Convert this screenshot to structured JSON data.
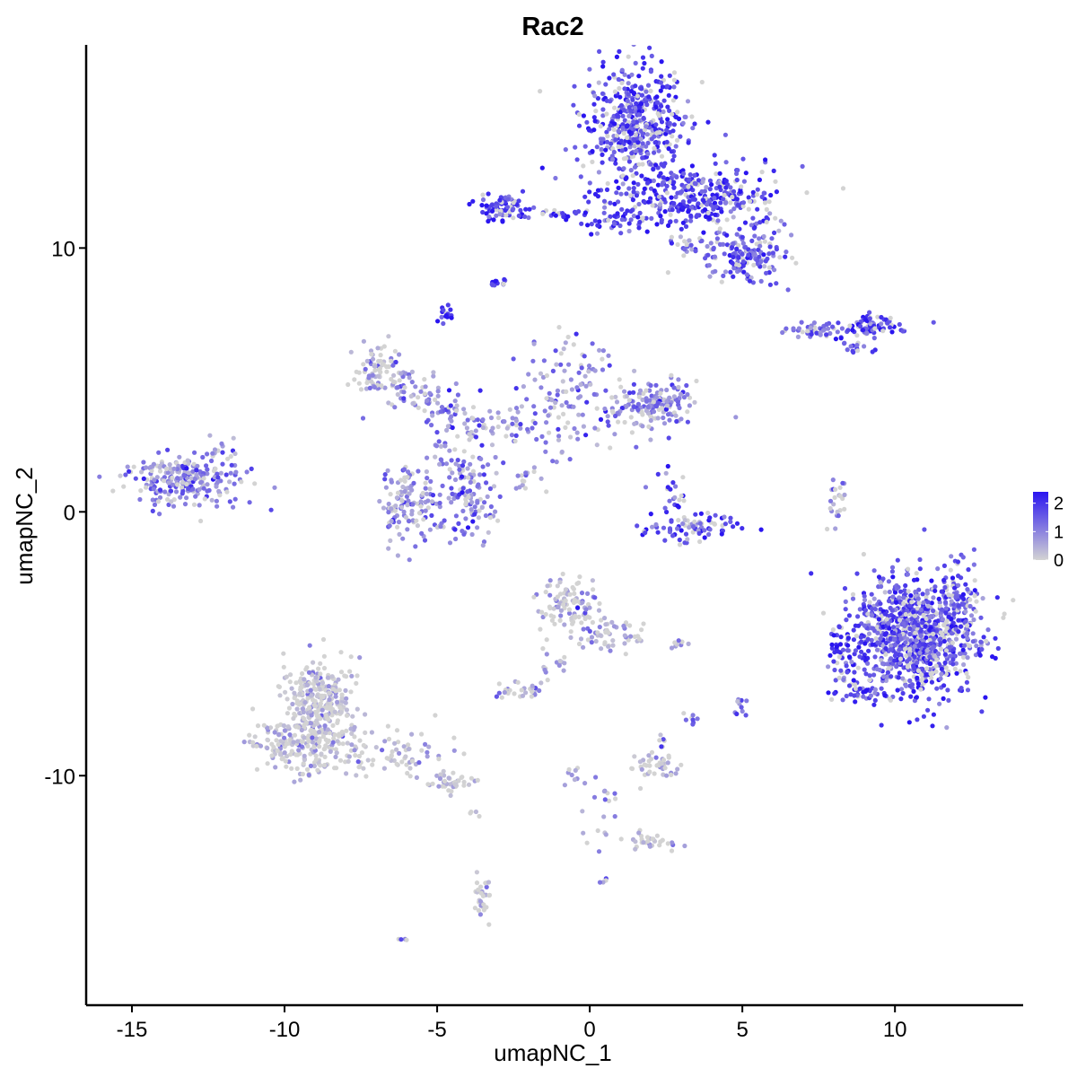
{
  "chart_data": {
    "type": "scatter",
    "title": "Rac2",
    "xlabel": "umapNC_1",
    "ylabel": "umapNC_2",
    "xlim": [
      -16.5,
      14.2
    ],
    "ylim": [
      -18.7,
      17.7
    ],
    "x_ticks": [
      -15,
      -10,
      -5,
      0,
      5,
      10
    ],
    "x_tick_labels": [
      "-15",
      "-10",
      "-5",
      "0",
      "5",
      "10"
    ],
    "y_ticks": [
      -10,
      0,
      10
    ],
    "y_tick_labels": [
      "-10",
      "0",
      "10"
    ],
    "grid": false,
    "legend": {
      "placement": "right",
      "type": "colorbar",
      "title": "",
      "ticks": [
        0,
        1,
        2
      ],
      "tick_labels": [
        "0",
        "1",
        "2"
      ],
      "range": [
        0,
        2.4
      ]
    },
    "colors": {
      "low": "#d3d3d3",
      "high": "#2a15f0"
    },
    "clusters": [
      {
        "cx": 1.5,
        "cy": 14.7,
        "sx": 1.0,
        "sy": 1.2,
        "n": 480,
        "expr": 1.7
      },
      {
        "cx": 3.4,
        "cy": 11.9,
        "sx": 1.6,
        "sy": 0.7,
        "n": 340,
        "expr": 1.8
      },
      {
        "cx": 5.0,
        "cy": 9.8,
        "sx": 0.9,
        "sy": 0.7,
        "n": 170,
        "expr": 1.4
      },
      {
        "cx": -2.8,
        "cy": 11.6,
        "sx": 0.5,
        "sy": 0.35,
        "n": 70,
        "expr": 2.0
      },
      {
        "cx": -1.3,
        "cy": 11.3,
        "sx": 0.8,
        "sy": 0.15,
        "n": 25,
        "expr": 1.9
      },
      {
        "cx": 0.8,
        "cy": 11.0,
        "sx": 0.8,
        "sy": 0.3,
        "n": 40,
        "expr": 1.8
      },
      {
        "cx": 3.1,
        "cy": 10.1,
        "sx": 0.3,
        "sy": 0.2,
        "n": 14,
        "expr": 1.8
      },
      {
        "cx": -3.0,
        "cy": 8.7,
        "sx": 0.15,
        "sy": 0.1,
        "n": 12,
        "expr": 1.9
      },
      {
        "cx": -4.7,
        "cy": 7.4,
        "sx": 0.15,
        "sy": 0.2,
        "n": 16,
        "expr": 2.1
      },
      {
        "cx": 9.2,
        "cy": 7.0,
        "sx": 0.6,
        "sy": 0.25,
        "n": 80,
        "expr": 1.9
      },
      {
        "cx": 7.3,
        "cy": 6.9,
        "sx": 0.6,
        "sy": 0.15,
        "n": 40,
        "expr": 1.2
      },
      {
        "cx": 8.8,
        "cy": 6.2,
        "sx": 0.3,
        "sy": 0.15,
        "n": 12,
        "expr": 1.4
      },
      {
        "cx": -13.3,
        "cy": 1.2,
        "sx": 1.0,
        "sy": 0.55,
        "n": 240,
        "expr": 1.1
      },
      {
        "cx": -11.9,
        "cy": 2.1,
        "sx": 0.3,
        "sy": 0.4,
        "n": 14,
        "expr": 1.0
      },
      {
        "cx": -7.0,
        "cy": 5.4,
        "sx": 0.4,
        "sy": 0.5,
        "n": 70,
        "expr": 0.4
      },
      {
        "cx": -6.0,
        "cy": 4.8,
        "sx": 0.7,
        "sy": 0.5,
        "n": 45,
        "expr": 0.8
      },
      {
        "cx": -4.6,
        "cy": 4.0,
        "sx": 0.8,
        "sy": 0.5,
        "n": 60,
        "expr": 1.1
      },
      {
        "cx": -0.7,
        "cy": 4.2,
        "sx": 1.1,
        "sy": 1.2,
        "n": 130,
        "expr": 0.9
      },
      {
        "cx": 1.7,
        "cy": 4.0,
        "sx": 0.8,
        "sy": 0.5,
        "n": 90,
        "expr": 0.8
      },
      {
        "cx": 2.4,
        "cy": 4.1,
        "sx": 0.5,
        "sy": 0.6,
        "n": 70,
        "expr": 1.0
      },
      {
        "cx": -2.8,
        "cy": 3.2,
        "sx": 0.9,
        "sy": 0.4,
        "n": 40,
        "expr": 0.6
      },
      {
        "cx": -4.3,
        "cy": 2.1,
        "sx": 0.5,
        "sy": 0.8,
        "n": 50,
        "expr": 0.9
      },
      {
        "cx": -6.0,
        "cy": 0.3,
        "sx": 0.5,
        "sy": 0.8,
        "n": 110,
        "expr": 0.9
      },
      {
        "cx": -4.1,
        "cy": 0.3,
        "sx": 0.7,
        "sy": 0.8,
        "n": 110,
        "expr": 1.1
      },
      {
        "cx": -1.9,
        "cy": 1.3,
        "sx": 0.4,
        "sy": 0.3,
        "n": 14,
        "expr": 0.6
      },
      {
        "cx": 3.3,
        "cy": -0.6,
        "sx": 0.9,
        "sy": 0.3,
        "n": 80,
        "expr": 1.7
      },
      {
        "cx": 2.9,
        "cy": 0.6,
        "sx": 0.3,
        "sy": 0.5,
        "n": 22,
        "expr": 1.6
      },
      {
        "cx": 8.1,
        "cy": 0.3,
        "sx": 0.15,
        "sy": 0.6,
        "n": 24,
        "expr": 0.8
      },
      {
        "cx": 10.6,
        "cy": -4.7,
        "sx": 1.1,
        "sy": 1.25,
        "n": 950,
        "expr": 1.6
      },
      {
        "cx": 12.2,
        "cy": -3.6,
        "sx": 0.4,
        "sy": 0.8,
        "n": 80,
        "expr": 1.5
      },
      {
        "cx": 8.3,
        "cy": -5.4,
        "sx": 0.3,
        "sy": 0.6,
        "n": 50,
        "expr": 2.0
      },
      {
        "cx": 9.0,
        "cy": -6.9,
        "sx": 0.6,
        "sy": 0.2,
        "n": 40,
        "expr": 1.9
      },
      {
        "cx": -0.7,
        "cy": -3.6,
        "sx": 0.5,
        "sy": 0.6,
        "n": 90,
        "expr": 0.3
      },
      {
        "cx": 0.6,
        "cy": -4.6,
        "sx": 0.6,
        "sy": 0.4,
        "n": 60,
        "expr": 0.3
      },
      {
        "cx": -0.1,
        "cy": -3.4,
        "sx": 0.2,
        "sy": 0.2,
        "n": 10,
        "expr": 1.6
      },
      {
        "cx": -1.2,
        "cy": -5.7,
        "sx": 0.3,
        "sy": 0.4,
        "n": 15,
        "expr": 0.4
      },
      {
        "cx": -2.3,
        "cy": -6.8,
        "sx": 0.4,
        "sy": 0.2,
        "n": 30,
        "expr": 0.6
      },
      {
        "cx": -8.9,
        "cy": -7.3,
        "sx": 0.6,
        "sy": 1.0,
        "n": 300,
        "expr": 0.15
      },
      {
        "cx": -9.6,
        "cy": -8.8,
        "sx": 0.8,
        "sy": 0.6,
        "n": 160,
        "expr": 0.1
      },
      {
        "cx": -6.7,
        "cy": -9.2,
        "sx": 1.3,
        "sy": 0.5,
        "n": 100,
        "expr": 0.2
      },
      {
        "cx": -4.6,
        "cy": -10.2,
        "sx": 0.5,
        "sy": 0.2,
        "n": 40,
        "expr": 0.15
      },
      {
        "cx": 2.2,
        "cy": -9.6,
        "sx": 0.5,
        "sy": 0.3,
        "n": 45,
        "expr": 0.2
      },
      {
        "cx": 2.1,
        "cy": -12.5,
        "sx": 0.5,
        "sy": 0.15,
        "n": 30,
        "expr": 0.1
      },
      {
        "cx": 0.3,
        "cy": -11.4,
        "sx": 0.4,
        "sy": 0.8,
        "n": 20,
        "expr": 0.5
      },
      {
        "cx": -0.5,
        "cy": -9.8,
        "sx": 0.2,
        "sy": 0.4,
        "n": 8,
        "expr": 0.3
      },
      {
        "cx": -3.5,
        "cy": -14.6,
        "sx": 0.15,
        "sy": 0.5,
        "n": 30,
        "expr": 0.2
      },
      {
        "cx": 3.3,
        "cy": -7.8,
        "sx": 0.15,
        "sy": 0.2,
        "n": 8,
        "expr": 1.1
      },
      {
        "cx": 5.0,
        "cy": -7.3,
        "sx": 0.15,
        "sy": 0.2,
        "n": 10,
        "expr": 0.8
      },
      {
        "cx": 2.8,
        "cy": -5.0,
        "sx": 0.3,
        "sy": 0.1,
        "n": 8,
        "expr": 0.8
      },
      {
        "cx": 2.4,
        "cy": -8.7,
        "sx": 0.1,
        "sy": 0.2,
        "n": 5,
        "expr": 0.7
      },
      {
        "cx": 0.5,
        "cy": -14.0,
        "sx": 0.1,
        "sy": 0.1,
        "n": 4,
        "expr": 0.3
      },
      {
        "cx": -6.2,
        "cy": -16.2,
        "sx": 0.1,
        "sy": 0.05,
        "n": 4,
        "expr": 1.6
      },
      {
        "cx": -3.8,
        "cy": -11.4,
        "sx": 0.2,
        "sy": 0.1,
        "n": 4,
        "expr": 0.3
      }
    ]
  }
}
